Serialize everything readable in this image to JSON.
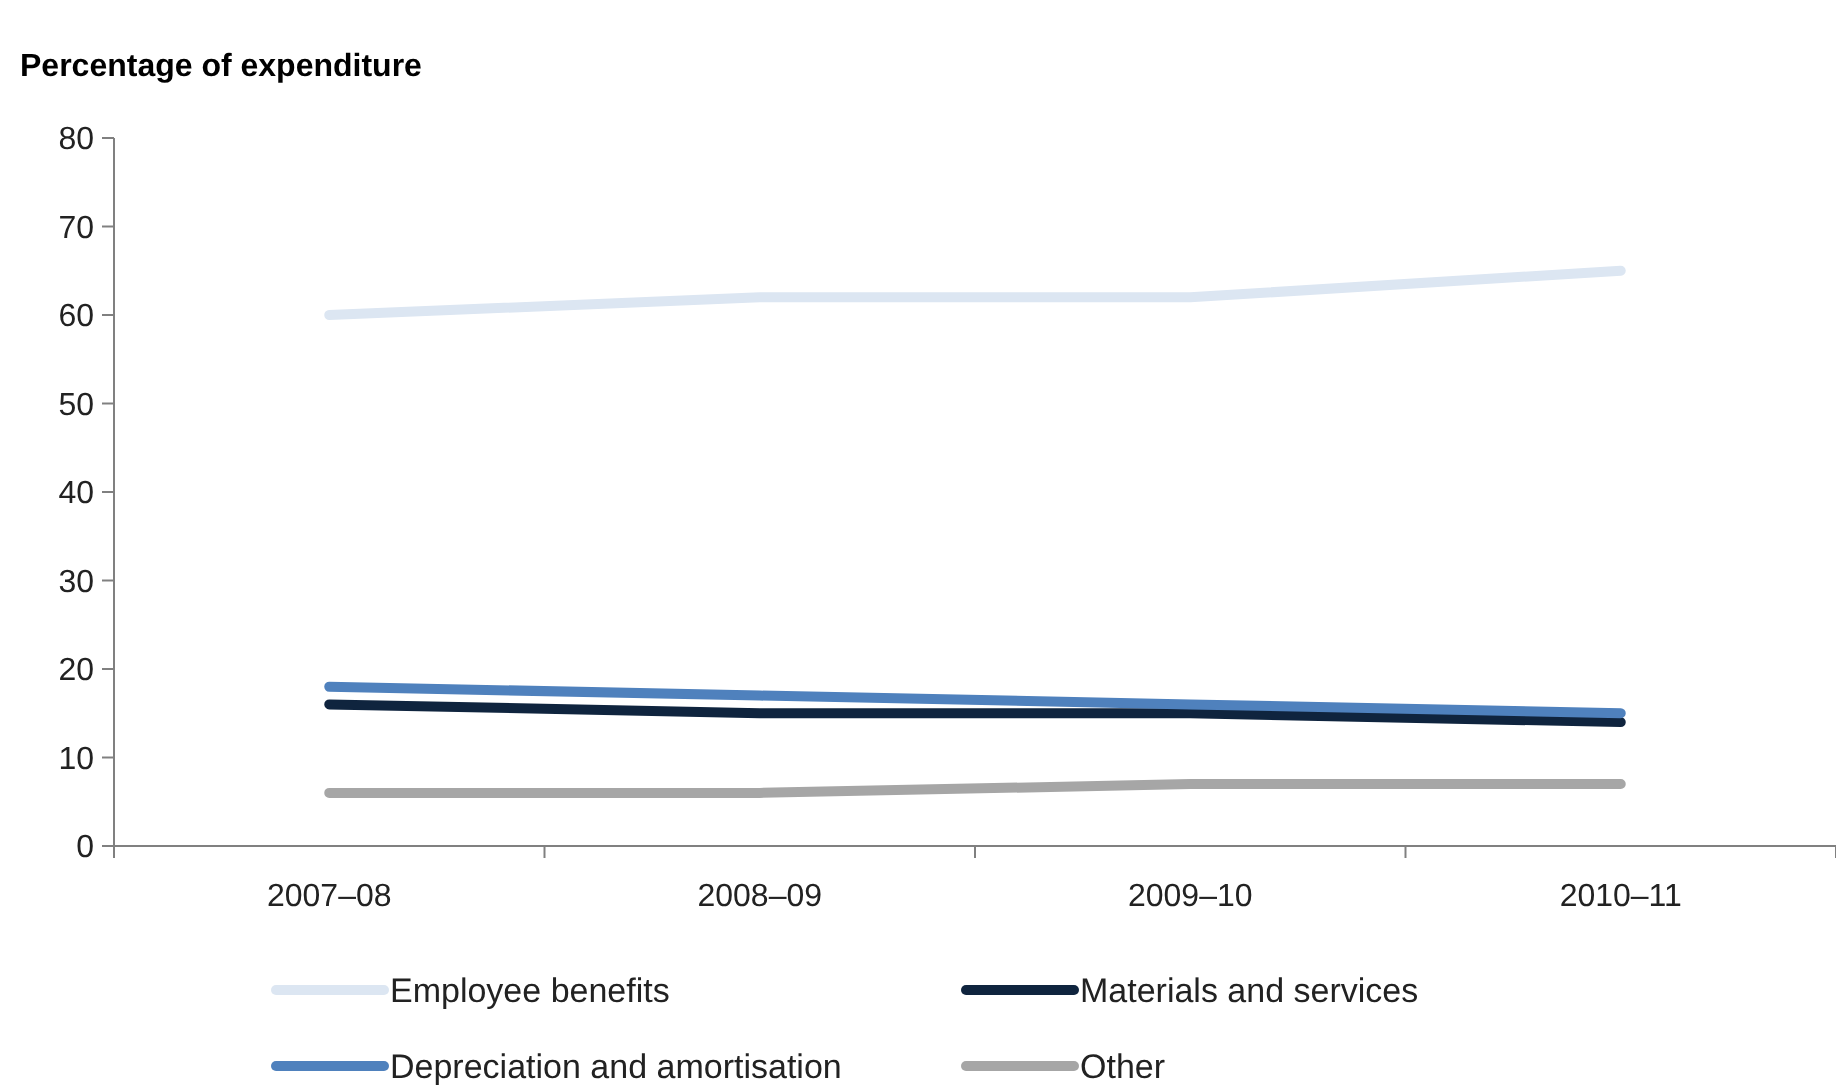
{
  "chart_data": {
    "type": "line",
    "ylabel": "Percentage of expenditure",
    "categories": [
      "2007–08",
      "2008–09",
      "2009–10",
      "2010–11"
    ],
    "series": [
      {
        "name": "Employee benefits",
        "color": "#dce6f2",
        "values": [
          60,
          62,
          62,
          65
        ]
      },
      {
        "name": "Materials and services",
        "color": "#0f243e",
        "values": [
          16,
          15,
          15,
          14
        ]
      },
      {
        "name": "Depreciation and amortisation",
        "color": "#4f81bd",
        "values": [
          18,
          17,
          16,
          15
        ]
      },
      {
        "name": "Other",
        "color": "#a6a6a6",
        "values": [
          6,
          6,
          7,
          7
        ]
      }
    ],
    "ylim": [
      0,
      80
    ],
    "yticks": [
      0,
      10,
      20,
      30,
      40,
      50,
      60,
      70,
      80
    ],
    "grid": false,
    "legend": "bottom",
    "marker": "none",
    "line_style": "solid"
  }
}
